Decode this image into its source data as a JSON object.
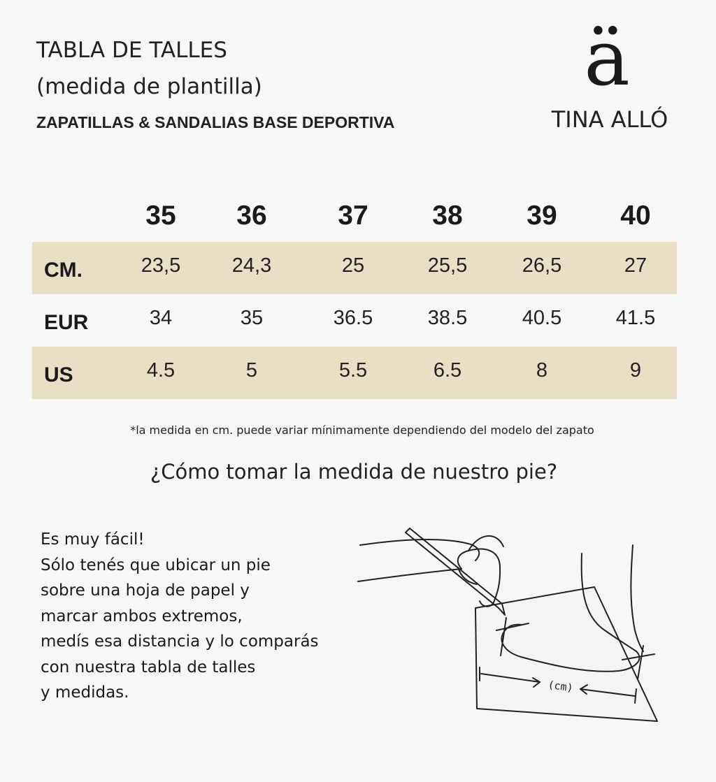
{
  "header": {
    "title_line1": "TABLA DE TALLES",
    "title_line2": "(medida de plantilla)",
    "subtitle": "ZAPATILLAS & SANDALIAS BASE DEPORTIVA"
  },
  "brand": {
    "logo_glyph": "ä",
    "name": "TINA ALLÓ"
  },
  "size_table": {
    "sizes": [
      "35",
      "36",
      "37",
      "38",
      "39",
      "40"
    ],
    "rows": [
      {
        "label": "CM.",
        "values": [
          "23,5",
          "24,3",
          "25",
          "25,5",
          "26,5",
          "27"
        ],
        "shaded": true
      },
      {
        "label": "EUR",
        "values": [
          "34",
          "35",
          "36.5",
          "38.5",
          "40.5",
          "41.5"
        ],
        "shaded": false
      },
      {
        "label": "US",
        "values": [
          "4.5",
          "5",
          "5.5",
          "6.5",
          "8",
          "9"
        ],
        "shaded": true
      }
    ],
    "shade_color": "#e9dfc5"
  },
  "footnote": "*la medida en cm. puede variar mínimamente dependiendo del modelo del zapato",
  "question": "¿Cómo tomar la medida de nuestro pie?",
  "instructions": [
    "Es muy fácil!",
    "Sólo tenés que ubicar un pie",
    "sobre una hoja de papel y",
    "marcar ambos extremos,",
    "medís esa distancia y lo comparás",
    "con nuestra tabla de talles",
    " y medidas."
  ],
  "illustration": {
    "measure_label": "(cm)"
  }
}
